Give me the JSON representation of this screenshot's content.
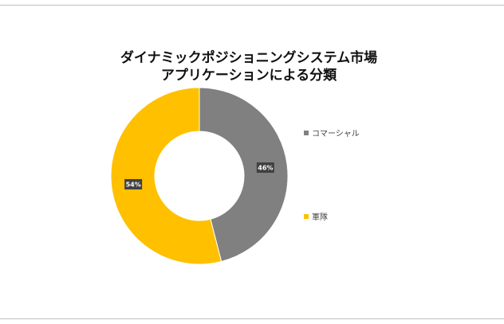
{
  "chart_data": {
    "type": "pie",
    "variant": "donut",
    "title": [
      "ダイナミックポジショニングシステム市場",
      "アプリケーションによる分類"
    ],
    "categories": [
      "コマーシャル",
      "軍隊"
    ],
    "values": [
      46,
      54
    ],
    "data_labels": [
      "46%",
      "54%"
    ],
    "colors": [
      "#808080",
      "#FFC000"
    ],
    "label_bg": "#404040",
    "legend_placement": "right",
    "start_angle_deg": 0,
    "direction": "clockwise"
  }
}
